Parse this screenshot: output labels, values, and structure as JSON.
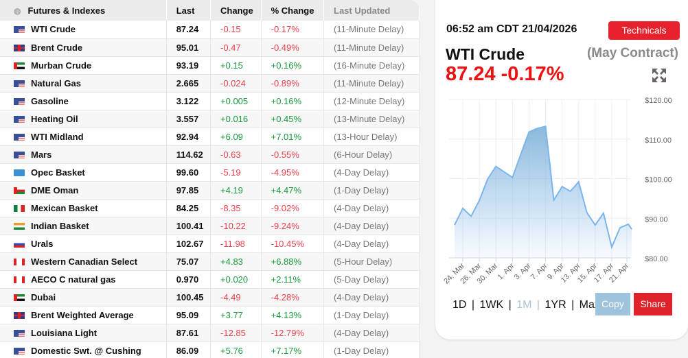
{
  "table": {
    "headers": [
      "Futures & Indexes",
      "Last",
      "Change",
      "% Change",
      "Last Updated"
    ],
    "rows": [
      {
        "flag": "us",
        "name": "WTI Crude",
        "last": "87.24",
        "change": "-0.15",
        "pct": "-0.17%",
        "updated": "(11-Minute Delay)"
      },
      {
        "flag": "gb",
        "name": "Brent Crude",
        "last": "95.01",
        "change": "-0.47",
        "pct": "-0.49%",
        "updated": "(11-Minute Delay)"
      },
      {
        "flag": "ae",
        "name": "Murban Crude",
        "last": "93.19",
        "change": "+0.15",
        "pct": "+0.16%",
        "updated": "(16-Minute Delay)"
      },
      {
        "flag": "us",
        "name": "Natural Gas",
        "last": "2.665",
        "change": "-0.024",
        "pct": "-0.89%",
        "updated": "(11-Minute Delay)"
      },
      {
        "flag": "us",
        "name": "Gasoline",
        "last": "3.122",
        "change": "+0.005",
        "pct": "+0.16%",
        "updated": "(12-Minute Delay)"
      },
      {
        "flag": "us",
        "name": "Heating Oil",
        "last": "3.557",
        "change": "+0.016",
        "pct": "+0.45%",
        "updated": "(13-Minute Delay)"
      },
      {
        "flag": "us",
        "name": "WTI Midland",
        "last": "92.94",
        "change": "+6.09",
        "pct": "+7.01%",
        "updated": "(13-Hour Delay)"
      },
      {
        "flag": "us",
        "name": "Mars",
        "last": "114.62",
        "change": "-0.63",
        "pct": "-0.55%",
        "updated": "(6-Hour Delay)"
      },
      {
        "flag": "opec",
        "name": "Opec Basket",
        "last": "99.60",
        "change": "-5.19",
        "pct": "-4.95%",
        "updated": "(4-Day Delay)"
      },
      {
        "flag": "om",
        "name": "DME Oman",
        "last": "97.85",
        "change": "+4.19",
        "pct": "+4.47%",
        "updated": "(1-Day Delay)"
      },
      {
        "flag": "mx",
        "name": "Mexican Basket",
        "last": "84.25",
        "change": "-8.35",
        "pct": "-9.02%",
        "updated": "(4-Day Delay)"
      },
      {
        "flag": "in",
        "name": "Indian Basket",
        "last": "100.41",
        "change": "-10.22",
        "pct": "-9.24%",
        "updated": "(4-Day Delay)"
      },
      {
        "flag": "ru",
        "name": "Urals",
        "last": "102.67",
        "change": "-11.98",
        "pct": "-10.45%",
        "updated": "(4-Day Delay)"
      },
      {
        "flag": "ca",
        "name": "Western Canadian Select",
        "last": "75.07",
        "change": "+4.83",
        "pct": "+6.88%",
        "updated": "(5-Hour Delay)"
      },
      {
        "flag": "ca",
        "name": "AECO C natural gas",
        "last": "0.970",
        "change": "+0.020",
        "pct": "+2.11%",
        "updated": "(5-Day Delay)"
      },
      {
        "flag": "ae",
        "name": "Dubai",
        "last": "100.45",
        "change": "-4.49",
        "pct": "-4.28%",
        "updated": "(4-Day Delay)"
      },
      {
        "flag": "gb",
        "name": "Brent Weighted Average",
        "last": "95.09",
        "change": "+3.77",
        "pct": "+4.13%",
        "updated": "(1-Day Delay)"
      },
      {
        "flag": "us",
        "name": "Louisiana Light",
        "last": "87.61",
        "change": "-12.85",
        "pct": "-12.79%",
        "updated": "(4-Day Delay)"
      },
      {
        "flag": "us",
        "name": "Domestic Swt. @ Cushing",
        "last": "86.09",
        "change": "+5.76",
        "pct": "+7.17%",
        "updated": "(1-Day Delay)"
      }
    ]
  },
  "panel": {
    "time": "06:52 am CDT 21/04/2026",
    "technicals": "Technicals",
    "title": "WTI Crude",
    "contract": "(May Contract)",
    "price": "87.24 -0.17%",
    "ranges": [
      "1D",
      "1WK",
      "1M",
      "1YR",
      "Max"
    ],
    "active_range": "1M",
    "copy": "Copy",
    "share": "Share"
  },
  "colors": {
    "negative": "#e8424d",
    "positive": "#1a9a3c",
    "accent": "#e8222d",
    "line": "#7cb5ec"
  },
  "chart_data": {
    "type": "area",
    "ylim": [
      80,
      120
    ],
    "yticks": [
      "$120.00",
      "$110.00",
      "$100.00",
      "$90.00",
      "$80.00"
    ],
    "xtick_labels": [
      "24. Mar",
      "26. Mar",
      "30. Mar",
      "1. Apr",
      "3. Apr",
      "7. Apr",
      "9. Apr",
      "13. Apr",
      "15. Apr",
      "17. Apr",
      "21. Apr"
    ],
    "x": [
      "23 Mar",
      "24 Mar",
      "25 Mar",
      "26 Mar",
      "27 Mar",
      "30 Mar",
      "31 Mar",
      "1 Apr",
      "2 Apr",
      "3 Apr",
      "6 Apr",
      "7 Apr",
      "8 Apr",
      "9 Apr",
      "10 Apr",
      "13 Apr",
      "14 Apr",
      "15 Apr",
      "16 Apr",
      "17 Apr",
      "20 Apr",
      "21 Apr",
      "21 Apr"
    ],
    "values": [
      88.3,
      92.5,
      90.5,
      94.5,
      99.9,
      103.1,
      101.7,
      100.3,
      106.1,
      111.8,
      112.7,
      113.2,
      94.6,
      98.0,
      96.8,
      99.2,
      91.4,
      88.3,
      91.3,
      82.7,
      87.6,
      88.5,
      87.24
    ],
    "grid": true
  }
}
